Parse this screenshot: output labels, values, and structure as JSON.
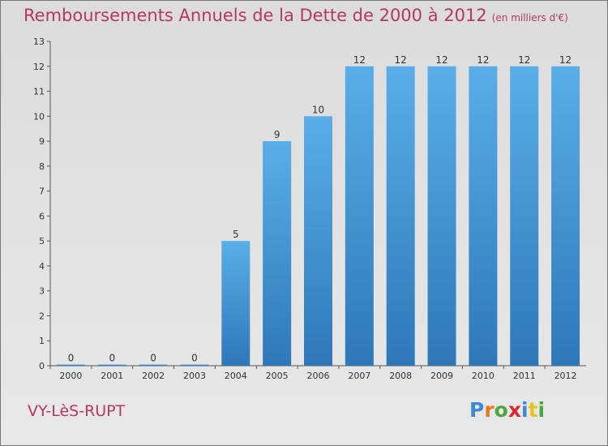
{
  "header": {
    "title": "Remboursements Annuels de la Dette de 2000 à 2012",
    "unit": "(en milliers d'€)"
  },
  "footer": {
    "place": "VY-LèS-RUPT",
    "logo": "Proxiti"
  },
  "colors": {
    "title": "#b5385e",
    "bar_top": "#5aaee8",
    "bar_bottom": "#2d78b9"
  },
  "chart_data": {
    "type": "bar",
    "title": "Remboursements Annuels de la Dette de 2000 à 2012",
    "xlabel": "",
    "ylabel": "",
    "categories": [
      "2000",
      "2001",
      "2002",
      "2003",
      "2004",
      "2005",
      "2006",
      "2007",
      "2008",
      "2009",
      "2010",
      "2011",
      "2012"
    ],
    "values": [
      0,
      0,
      0,
      0,
      5,
      9,
      10,
      12,
      12,
      12,
      12,
      12,
      12
    ],
    "ylim": [
      0,
      13
    ],
    "yticks": [
      "0",
      "1",
      "2",
      "3",
      "4",
      "5",
      "6",
      "7",
      "8",
      "9",
      "10",
      "11",
      "12",
      "13"
    ],
    "grid": false,
    "data_labels": true
  }
}
